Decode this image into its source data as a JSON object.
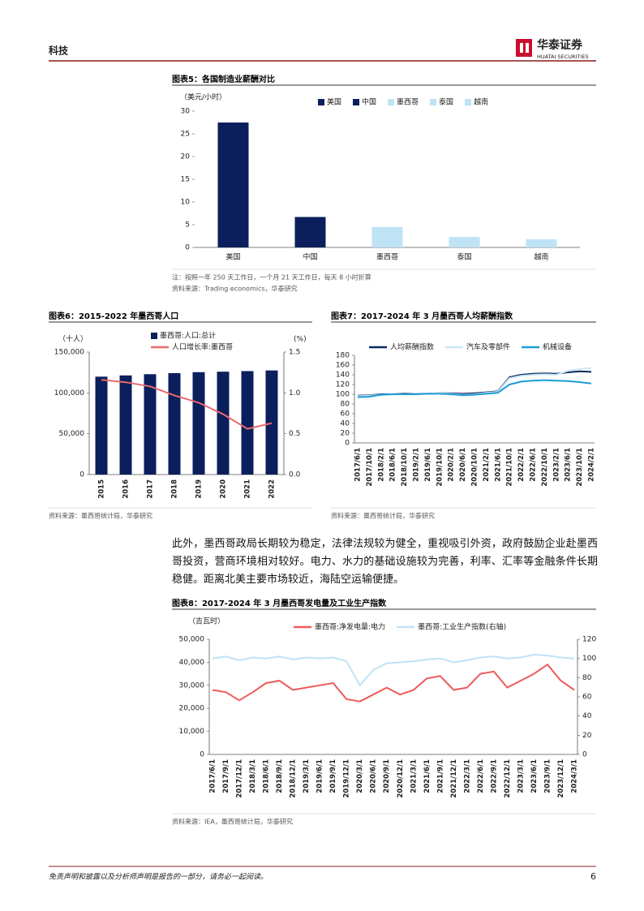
{
  "header": {
    "section": "科技",
    "brand": "华泰证券",
    "brand_en": "HUATAI SECURITIES"
  },
  "chart_data": [
    {
      "type": "bar",
      "title": "图表5：各国制造业薪酬对比",
      "y_label": "（美元/小时）",
      "categories": [
        "美国",
        "中国",
        "墨西哥",
        "泰国",
        "越南"
      ],
      "values": [
        27.5,
        6.7,
        4.5,
        2.3,
        1.8
      ],
      "colors": [
        "#0b1f5c",
        "#0b1f5c",
        "#bfe3f5",
        "#bfe3f5",
        "#bfe3f5"
      ],
      "ylim": [
        0,
        30
      ],
      "yticks": [
        0,
        5,
        10,
        15,
        20,
        25,
        30
      ],
      "note": "注：按照一年 250 天工作日，一个月 21 天工作日，每天 8 小时折算",
      "source": "资料来源：Trading economics，华泰研究"
    },
    {
      "type": "bar",
      "title": "图表6：2015-2022 年墨西哥人口",
      "y_label": "（十人）",
      "y2_label": "(%)",
      "categories": [
        "2015",
        "2016",
        "2017",
        "2018",
        "2019",
        "2020",
        "2021",
        "2022"
      ],
      "series": [
        {
          "name": "墨西哥:人口:总计",
          "type": "bar",
          "color": "#0b1f5c",
          "values": [
            119900,
            121400,
            122900,
            124200,
            125400,
            126000,
            126700,
            127500
          ]
        },
        {
          "name": "人口增长率:墨西哥",
          "type": "line",
          "axis": "y2",
          "color": "#ea6a6e",
          "values": [
            1.16,
            1.13,
            1.08,
            0.97,
            0.88,
            0.74,
            0.56,
            0.63
          ]
        }
      ],
      "ylim": [
        0,
        150000
      ],
      "yticks": [
        0,
        {
          "value": 50000,
          "label": "50,000"
        },
        {
          "value": 100000,
          "label": "100,000"
        },
        {
          "value": 150000,
          "label": "150,000"
        }
      ],
      "y2lim": [
        0,
        1.5
      ],
      "y2ticks": [
        {
          "value": 0,
          "label": "0.0"
        },
        0.5,
        {
          "value": 1,
          "label": "1.0"
        },
        1.5
      ],
      "source": "资料来源：墨西哥统计局，华泰研究"
    },
    {
      "type": "line",
      "title": "图表7：2017-2024 年 3 月墨西哥人均薪酬指数",
      "categories": [
        "2017/6/1",
        "2017/10/1",
        "2018/2/1",
        "2018/6/1",
        "2018/10/1",
        "2019/2/1",
        "2019/6/1",
        "2019/10/1",
        "2020/2/1",
        "2020/6/1",
        "2020/10/1",
        "2021/2/1",
        "2021/6/1",
        "2021/10/1",
        "2022/2/1",
        "2022/6/1",
        "2022/10/1",
        "2023/2/1",
        "2023/6/1",
        "2023/10/1",
        "2024/2/1"
      ],
      "series": [
        {
          "name": "人均薪酬指数",
          "color": "#0b2a5e",
          "values": [
            97,
            98,
            100,
            100,
            101,
            101,
            101,
            102,
            102,
            101,
            102,
            104,
            106,
            135,
            140,
            142,
            143,
            142,
            145,
            147,
            146
          ]
        },
        {
          "name": "汽车及零部件",
          "color": "#c9e7f6",
          "values": [
            96,
            97,
            99,
            100,
            100,
            101,
            101,
            102,
            101,
            99,
            100,
            103,
            105,
            133,
            138,
            140,
            141,
            140,
            148,
            152,
            154
          ]
        },
        {
          "name": "机械设备",
          "color": "#1e9bd7",
          "values": [
            94,
            95,
            99,
            100,
            100,
            100,
            101,
            101,
            100,
            98,
            99,
            101,
            103,
            120,
            126,
            128,
            129,
            128,
            127,
            125,
            122
          ]
        }
      ],
      "ylim": [
        0,
        180
      ],
      "yticks": [
        0,
        20,
        40,
        60,
        80,
        100,
        120,
        140,
        160,
        180
      ],
      "source": "资料来源：墨西哥统计局，华泰研究"
    },
    {
      "type": "line",
      "title": "图表8：2017-2024 年 3 月墨西哥发电量及工业生产指数",
      "y_label": "（吉瓦时）",
      "categories": [
        "2017/6/1",
        "2017/9/1",
        "2017/12/1",
        "2018/3/1",
        "2018/6/1",
        "2018/9/1",
        "2018/12/1",
        "2019/3/1",
        "2019/6/1",
        "2019/9/1",
        "2019/12/1",
        "2020/3/1",
        "2020/6/1",
        "2020/9/1",
        "2020/12/1",
        "2021/3/1",
        "2021/6/1",
        "2021/9/1",
        "2021/12/1",
        "2022/3/1",
        "2022/6/1",
        "2022/9/1",
        "2022/12/1",
        "2023/3/1",
        "2023/6/1",
        "2023/9/1",
        "2023/12/1",
        "2024/3/1"
      ],
      "series": [
        {
          "name": "墨西哥:净发电量:电力",
          "color": "#ee5a5a",
          "values": [
            28000,
            27000,
            23500,
            27000,
            31000,
            32000,
            28000,
            29000,
            30000,
            31000,
            24000,
            23000,
            26000,
            29000,
            26000,
            28000,
            33000,
            34000,
            28000,
            29000,
            35000,
            36000,
            29000,
            32000,
            35000,
            39000,
            32000,
            28000
          ]
        },
        {
          "name": "墨西哥:工业生产指数(右轴)",
          "axis": "y2",
          "color": "#bfe3f5",
          "values": [
            100,
            102,
            98,
            101,
            100,
            102,
            99,
            101,
            100,
            101,
            97,
            72,
            88,
            95,
            96,
            97,
            99,
            100,
            96,
            98,
            101,
            102,
            100,
            101,
            104,
            103,
            101,
            100
          ]
        }
      ],
      "ylim": [
        0,
        50000
      ],
      "yticks": [
        0,
        {
          "value": 10000,
          "label": "10,000"
        },
        {
          "value": 20000,
          "label": "20,000"
        },
        {
          "value": 30000,
          "label": "30,000"
        },
        {
          "value": 40000,
          "label": "40,000"
        },
        {
          "value": 50000,
          "label": "50,000"
        }
      ],
      "y2lim": [
        0,
        120
      ],
      "y2ticks": [
        0,
        20,
        40,
        60,
        80,
        100,
        120
      ],
      "source": "资料来源：IEA，墨西哥统计局，华泰研究"
    }
  ],
  "body": {
    "paragraph": "此外，墨西哥政局长期较为稳定，法律法规较为健全，重视吸引外资，政府鼓励企业赴墨西哥投资，营商环境相对较好。电力、水力的基础设施较为完善，利率、汇率等金融条件长期稳健。距离北美主要市场较近，海陆空运输便捷。"
  },
  "footer": {
    "disclaimer": "免责声明和披露以及分析师声明是报告的一部分，请务必一起阅读。",
    "page": "6"
  }
}
